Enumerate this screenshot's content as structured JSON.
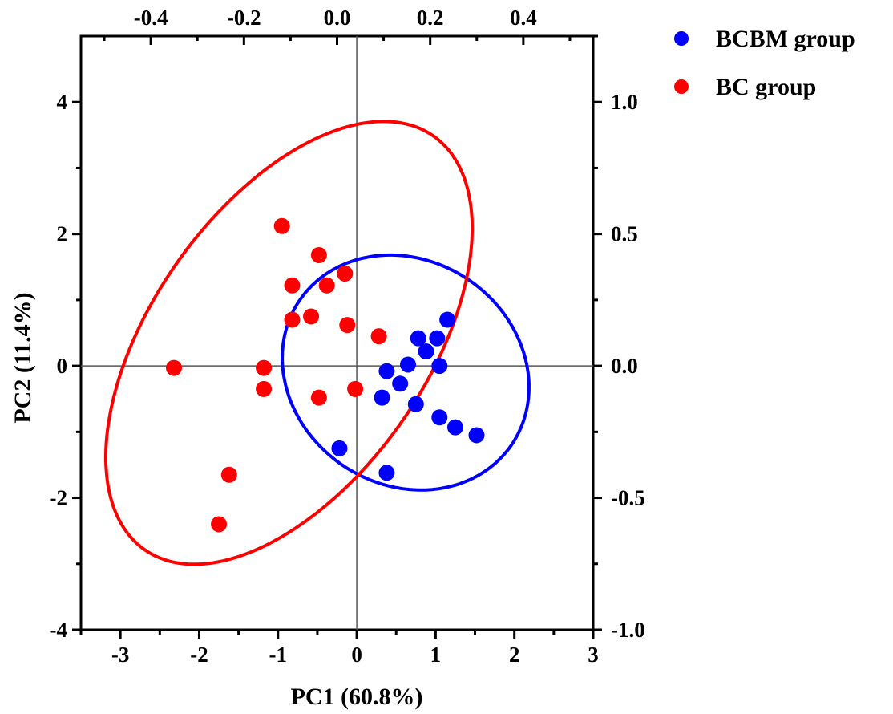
{
  "chart_data": {
    "type": "scatter",
    "title": "",
    "xlabel": "PC1 (60.8%)",
    "ylabel": "PC2 (11.4%)",
    "xlim": [
      -3.5,
      3.0
    ],
    "ylim": [
      -4.0,
      5.0
    ],
    "x_ticks": [
      -3,
      -2,
      -1,
      0,
      1,
      2,
      3
    ],
    "y_ticks": [
      -4,
      -2,
      0,
      2,
      4
    ],
    "top_axis": {
      "lim": [
        -0.55,
        0.55
      ],
      "ticks": [
        "-0.4",
        "-0.2",
        "0.0",
        "0.2",
        "0.4"
      ],
      "tick_values": [
        -0.4,
        -0.2,
        0.0,
        0.2,
        0.4
      ]
    },
    "right_axis": {
      "lim": [
        -1.0,
        1.25
      ],
      "ticks": [
        "-1.0",
        "-0.5",
        "0.0",
        "0.5",
        "1.0"
      ],
      "tick_values": [
        -1.0,
        -0.5,
        0.0,
        0.5,
        1.0
      ]
    },
    "grid": false,
    "zero_lines": true,
    "legend_position": "outside-top-right",
    "series": [
      {
        "name": "BCBM group",
        "color": "#0000ff",
        "x": [
          0.38,
          0.55,
          0.65,
          0.78,
          0.88,
          1.02,
          1.15,
          1.05,
          0.32,
          0.75,
          1.05,
          1.25,
          1.52,
          -0.22,
          0.38
        ],
        "y": [
          -0.08,
          -0.27,
          0.02,
          0.42,
          0.22,
          0.42,
          0.7,
          0.0,
          -0.48,
          -0.58,
          -0.78,
          -0.93,
          -1.05,
          -1.25,
          -1.62
        ],
        "ellipse": {
          "center": [
            0.62,
            -0.1
          ],
          "rx": 1.52,
          "ry": 1.82,
          "angle_deg": 22
        }
      },
      {
        "name": "BC group",
        "color": "#ff0000",
        "x": [
          -0.95,
          -0.48,
          -0.82,
          -0.38,
          -0.15,
          -0.82,
          -0.58,
          -0.12,
          0.28,
          -2.32,
          -1.18,
          -1.18,
          -0.48,
          -0.02,
          -1.62,
          -1.75
        ],
        "y": [
          2.12,
          1.68,
          1.22,
          1.22,
          1.4,
          0.7,
          0.75,
          0.62,
          0.45,
          -0.03,
          -0.03,
          -0.35,
          -0.48,
          -0.35,
          -1.65,
          -2.4
        ],
        "ellipse": {
          "center": [
            -0.86,
            0.35
          ],
          "rx": 3.65,
          "ry": 1.83,
          "angle_deg": 63
        }
      }
    ]
  }
}
